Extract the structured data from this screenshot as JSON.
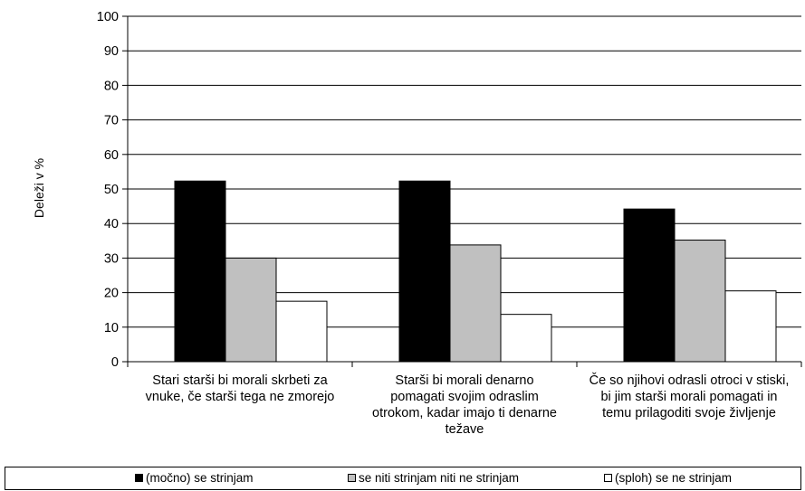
{
  "chart_data": {
    "type": "bar",
    "ylabel": "Deleži v %",
    "ylim": [
      0,
      100
    ],
    "yticks": [
      0,
      10,
      20,
      30,
      40,
      50,
      60,
      70,
      80,
      90,
      100
    ],
    "grid": true,
    "legend_position": "bottom",
    "categories": [
      "Stari starši bi morali skrbeti za vnuke, če starši tega ne zmorejo",
      "Starši bi morali denarno pomagati svojim odraslim otrokom, kadar imajo ti denarne težave",
      "Če so njihovi odrasli otroci v stiski, bi jim starši morali pomagati in temu prilagoditi svoje življenje"
    ],
    "series": [
      {
        "name": "(močno) se strinjam",
        "color": "#000000",
        "values": [
          52.3,
          52.3,
          44.2
        ]
      },
      {
        "name": "se niti strinjam niti ne strinjam",
        "color": "#c0c0c0",
        "values": [
          30.0,
          33.8,
          35.2
        ]
      },
      {
        "name": "(sploh) se ne strinjam",
        "color": "#ffffff",
        "values": [
          17.5,
          13.7,
          20.5
        ]
      }
    ]
  }
}
